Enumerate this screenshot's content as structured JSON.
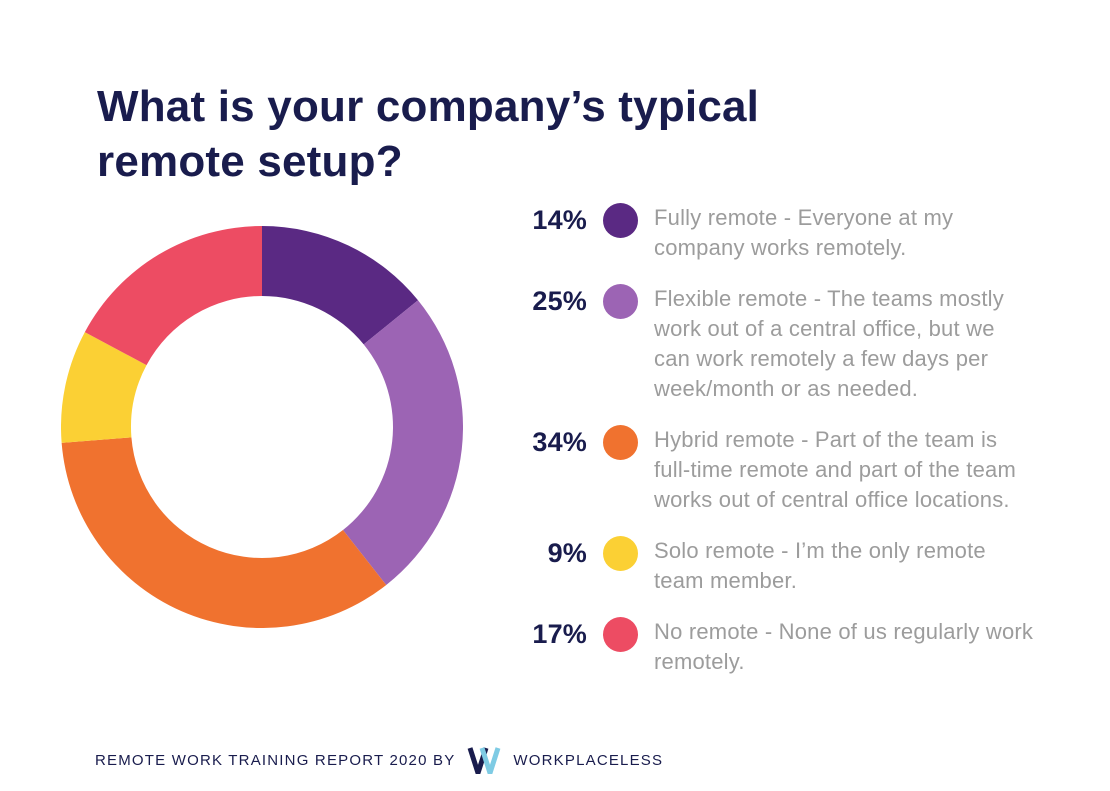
{
  "title": {
    "text": "What is your company’s typical\nremote setup?"
  },
  "chart_data": {
    "type": "pie",
    "subtype": "donut",
    "title": "What is your company’s typical remote setup?",
    "start_angle_deg": -90,
    "direction": "clockwise",
    "inner_radius_ratio": 0.652,
    "categories": [
      "Fully remote",
      "Flexible remote",
      "Hybrid remote",
      "Solo remote",
      "No remote"
    ],
    "values": [
      14,
      25,
      34,
      9,
      17
    ],
    "unit": "%",
    "colors": [
      "#5a2983",
      "#9c64b4",
      "#f0722f",
      "#fbd034",
      "#ed4c63"
    ],
    "slugs": [
      "fully-remote",
      "flexible-remote",
      "hybrid-remote",
      "solo-remote",
      "no-remote"
    ],
    "legend_position": "right",
    "grid": false
  },
  "legend": {
    "items": [
      {
        "percent": "14%",
        "color": "#5a2983",
        "slug": "fully-remote",
        "lines": [
          "Fully remote - Everyone at my",
          "company works remotely."
        ]
      },
      {
        "percent": "25%",
        "color": "#9c64b4",
        "slug": "flexible-remote",
        "lines": [
          "Flexible remote - The teams mostly",
          "work out of a central office, but we",
          "can work remotely a few days per",
          "week/month or as needed."
        ]
      },
      {
        "percent": "34%",
        "color": "#f0722f",
        "slug": "hybrid-remote",
        "lines": [
          "Hybrid remote - Part of the team is",
          "full-time remote and part of the team",
          "works out of central office locations."
        ]
      },
      {
        "percent": "9%",
        "color": "#fbd034",
        "slug": "solo-remote",
        "lines": [
          "Solo remote - I’m the only remote",
          "team member."
        ]
      },
      {
        "percent": "17%",
        "color": "#ed4c63",
        "slug": "no-remote",
        "lines": [
          "No remote - None of us regularly work",
          "remotely."
        ]
      }
    ]
  },
  "footer": {
    "report_text": "REMOTE WORK TRAINING REPORT 2020 BY",
    "brand": "WORKPLACELESS",
    "logo": "workplaceless-w-logo",
    "logo_colors": {
      "navy": "#191c4d",
      "blue": "#7ecbe4"
    }
  },
  "colors": {
    "background": "#ffffff",
    "heading": "#191c4d",
    "body_text": "#9c9c9c"
  }
}
